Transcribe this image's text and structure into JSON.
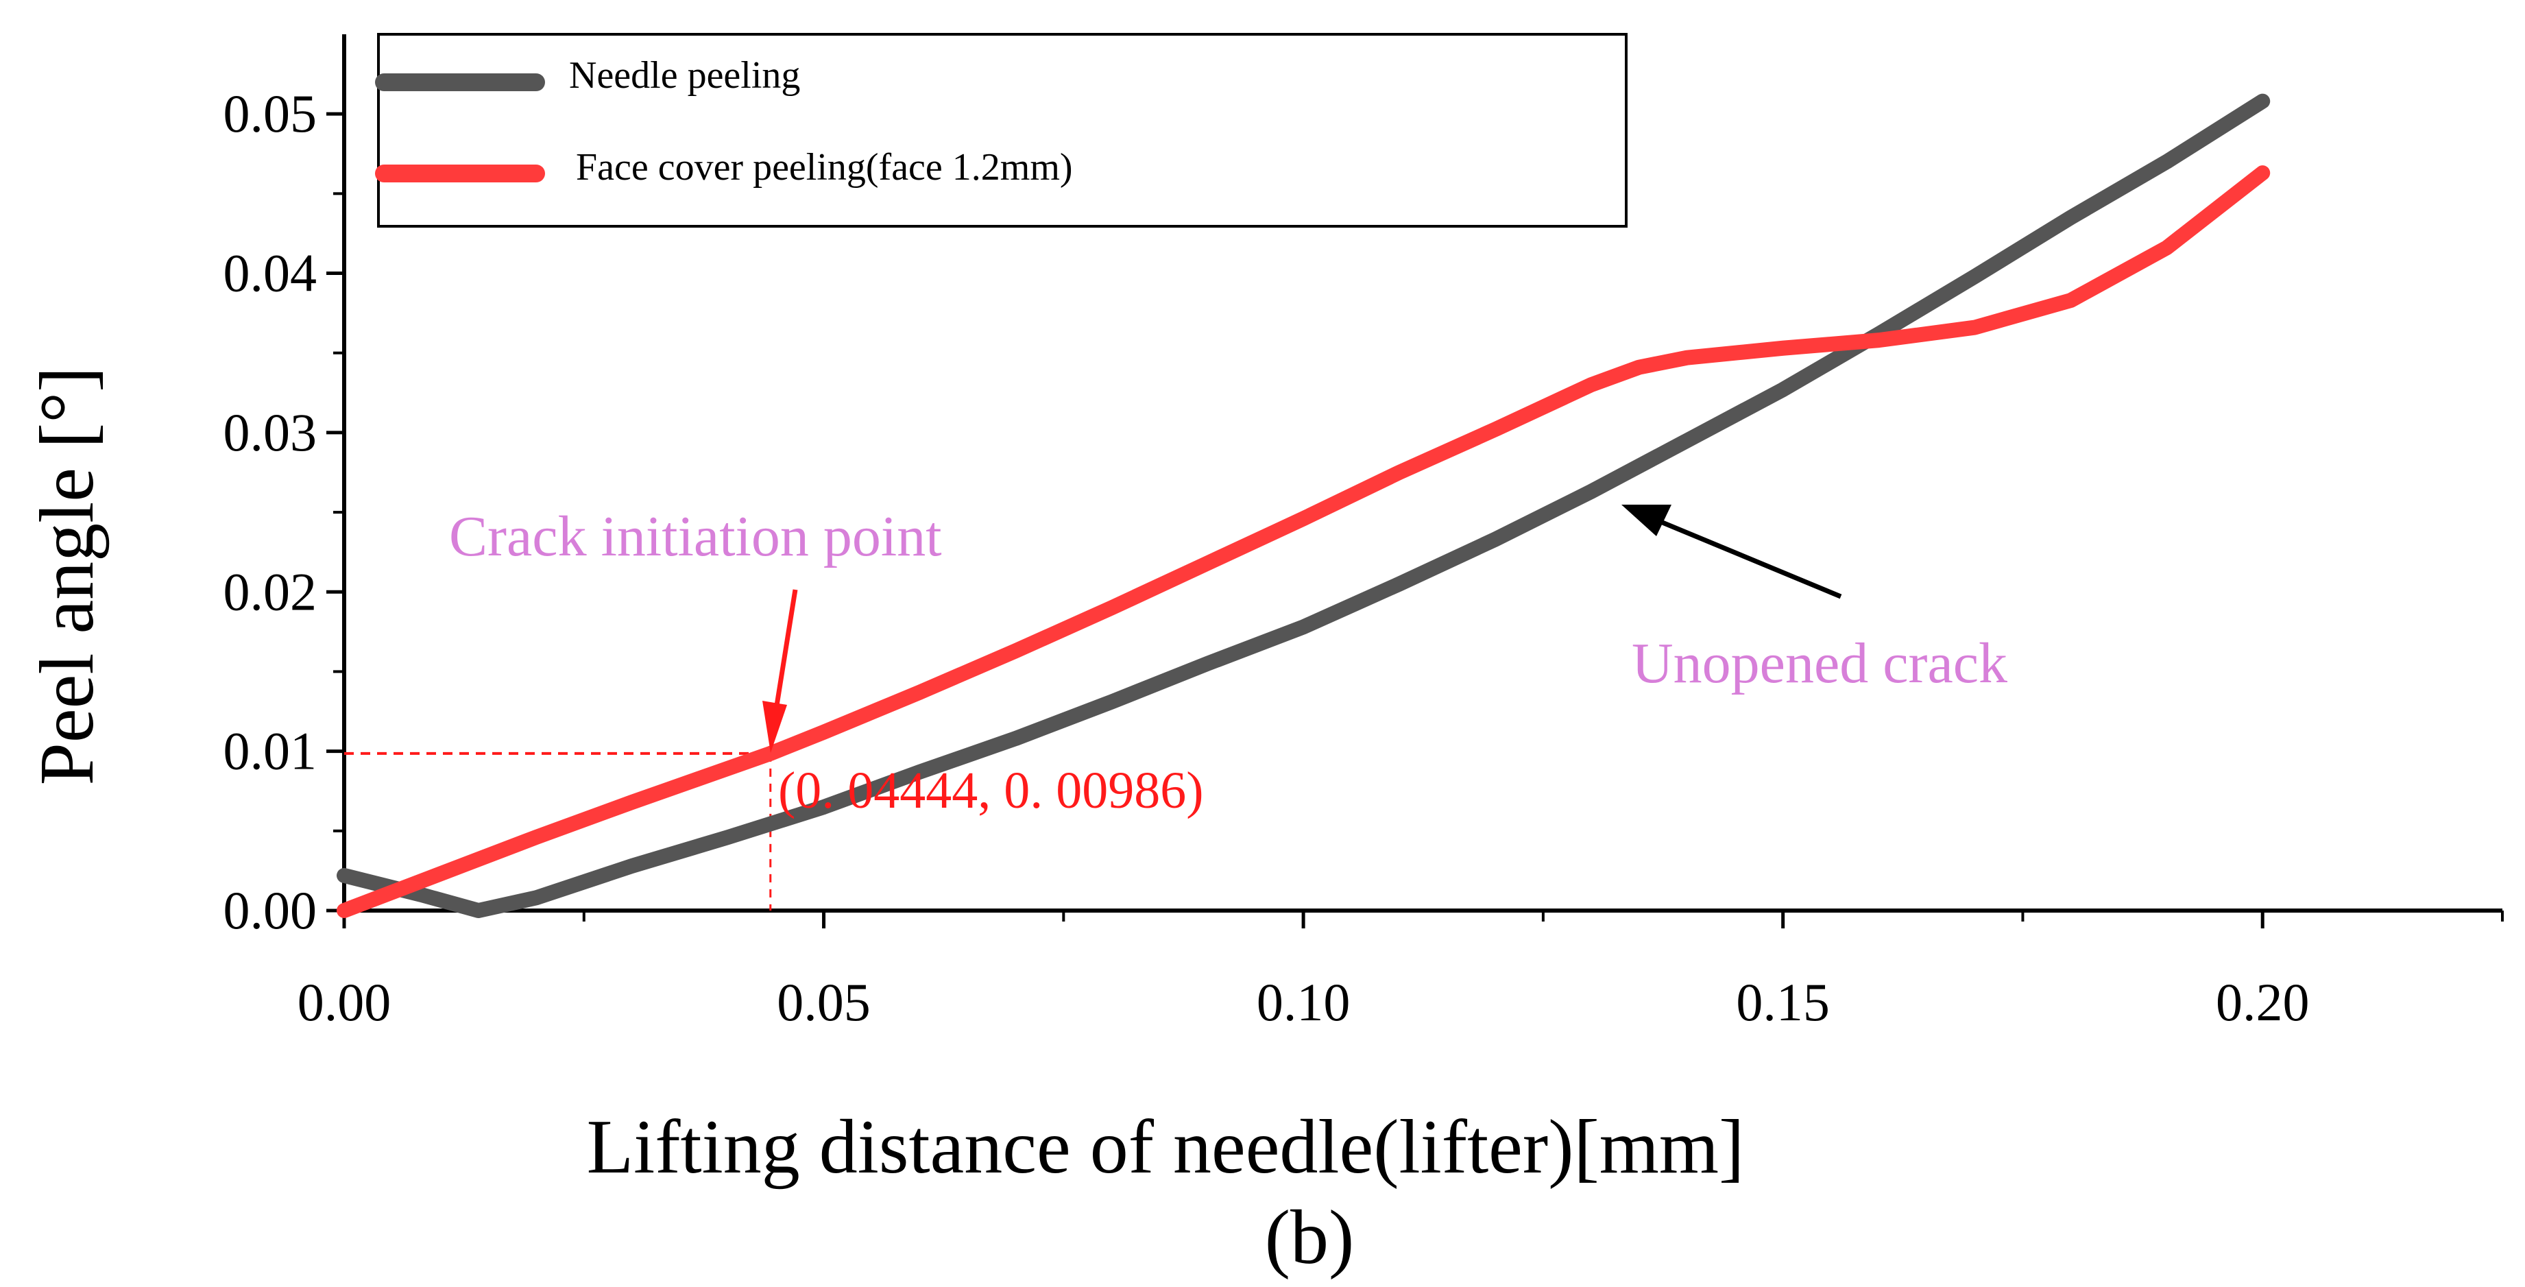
{
  "chart_data": {
    "type": "line",
    "title": "",
    "xlabel": "Lifting distance of needle(lifter)[mm]",
    "ylabel": "Peel angle [°]",
    "caption": "(b)",
    "xlim": [
      0,
      0.225
    ],
    "ylim": [
      0,
      0.055
    ],
    "xticks": [
      0.0,
      0.05,
      0.1,
      0.15,
      0.2
    ],
    "xtick_labels": [
      "0.00",
      "0.05",
      "0.10",
      "0.15",
      "0.20"
    ],
    "yticks": [
      0.0,
      0.01,
      0.02,
      0.03,
      0.04,
      0.05
    ],
    "ytick_labels": [
      "0.00",
      "0.01",
      "0.02",
      "0.03",
      "0.04",
      "0.05"
    ],
    "legend_position": "top-left",
    "series": [
      {
        "name": "Needle peeling",
        "color": "#555555",
        "x": [
          0.0,
          0.008,
          0.014,
          0.02,
          0.03,
          0.04,
          0.05,
          0.06,
          0.07,
          0.08,
          0.09,
          0.1,
          0.11,
          0.12,
          0.13,
          0.14,
          0.15,
          0.16,
          0.17,
          0.18,
          0.19,
          0.2
        ],
        "y": [
          0.0022,
          0.001,
          0.0,
          0.0008,
          0.0028,
          0.0046,
          0.0065,
          0.0087,
          0.0108,
          0.0131,
          0.0155,
          0.0178,
          0.0205,
          0.0233,
          0.0263,
          0.0295,
          0.0327,
          0.0362,
          0.0398,
          0.0435,
          0.047,
          0.0508
        ]
      },
      {
        "name": "Face cover peeling(face 1.2mm)",
        "color": "#ff3b3b",
        "x": [
          0.0,
          0.01,
          0.02,
          0.03,
          0.04444,
          0.05,
          0.06,
          0.07,
          0.08,
          0.09,
          0.1,
          0.11,
          0.12,
          0.13,
          0.135,
          0.14,
          0.15,
          0.16,
          0.17,
          0.18,
          0.19,
          0.2
        ],
        "y": [
          0.0,
          0.0023,
          0.0046,
          0.0068,
          0.00986,
          0.0112,
          0.0137,
          0.0163,
          0.019,
          0.0218,
          0.0246,
          0.0275,
          0.0302,
          0.033,
          0.0341,
          0.0347,
          0.0353,
          0.0358,
          0.0366,
          0.0383,
          0.0416,
          0.0463
        ]
      }
    ],
    "annotations": [
      {
        "text": "Crack initiation point",
        "color": "#d77fd9",
        "points_to": [
          0.04444,
          0.00986
        ]
      },
      {
        "text": "(0. 04444, 0. 00986)",
        "color": "#ff1a1a"
      },
      {
        "text": "Unopened crack",
        "color": "#d77fd9",
        "points_to": [
          0.132,
          0.0262
        ]
      }
    ],
    "marker_point": {
      "x": 0.04444,
      "y": 0.00986
    }
  }
}
